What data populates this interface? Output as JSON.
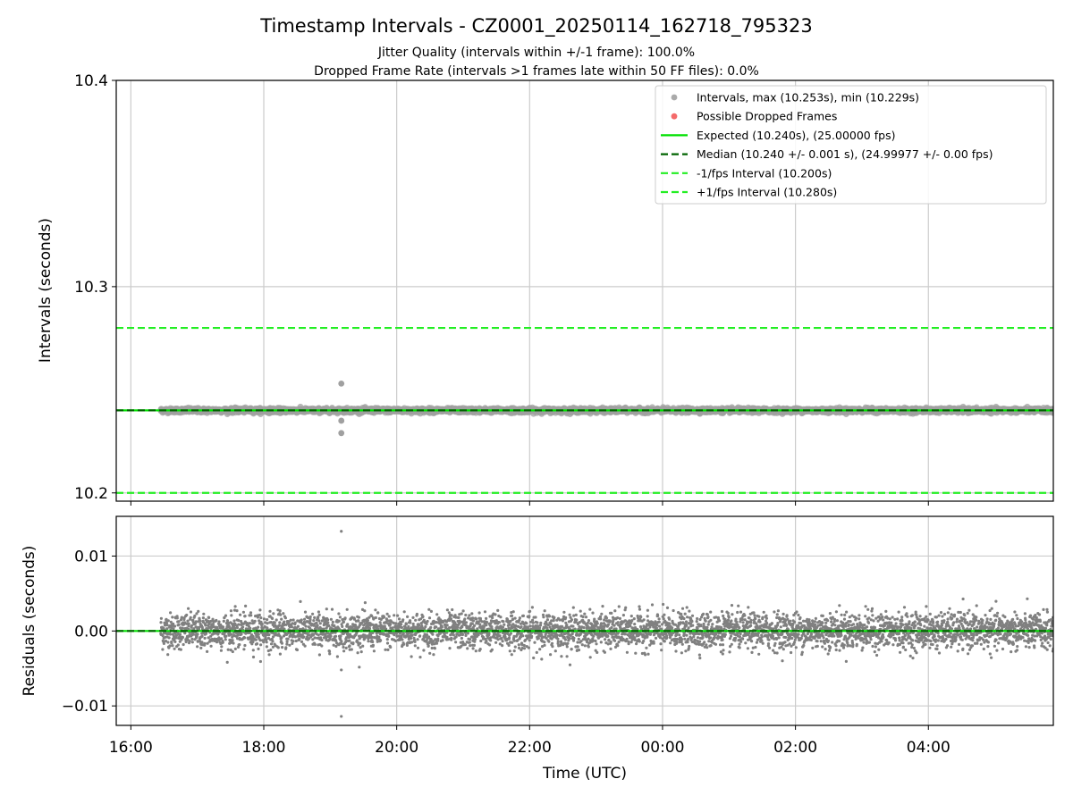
{
  "figure": {
    "title": "Timestamp Intervals - CZ0001_20250114_162718_795323",
    "subtitle_1": "Jitter Quality (intervals within +/-1 frame): 100.0%",
    "subtitle_2": "Dropped Frame Rate (intervals >1 frames late within 50 FF files): 0.0%"
  },
  "chart_data": [
    {
      "panel": "intervals",
      "type": "scatter",
      "ylabel": "Intervals (seconds)",
      "ylim": [
        10.196,
        10.4
      ],
      "xlim_hours": [
        15.78,
        29.88
      ],
      "yticks": [
        10.2,
        10.3,
        10.4
      ],
      "ytick_labels": [
        "10.2",
        "10.3",
        "10.4"
      ],
      "grid": true,
      "legend_position": "top-right",
      "legend": [
        {
          "label": "Intervals, max (10.253s), min (10.229s)",
          "kind": "marker",
          "color": "#aaaaaa"
        },
        {
          "label": "Possible Dropped Frames",
          "kind": "marker",
          "color": "#f46a6a"
        },
        {
          "label": "Expected (10.240s), (25.00000 fps)",
          "kind": "line",
          "color": "#00e000",
          "dash": "solid"
        },
        {
          "label": "Median (10.240 +/- 0.001 s), (24.99977 +/- 0.00 fps)",
          "kind": "line",
          "color": "#006400",
          "dash": "dashed"
        },
        {
          "label": "-1/fps Interval (10.200s)",
          "kind": "line",
          "color": "#22ee22",
          "dash": "dashed"
        },
        {
          "label": "+1/fps Interval (10.280s)",
          "kind": "line",
          "color": "#22ee22",
          "dash": "dashed"
        }
      ],
      "expected": 10.24,
      "median": 10.24,
      "minus_1fps": 10.2,
      "plus_1fps": 10.28,
      "series": {
        "name": "Intervals",
        "x_start": "16:27",
        "x_end": "05:53",
        "central_value": 10.24,
        "spread_sd": 0.0012,
        "count": 4700,
        "outliers": [
          {
            "x": "19:10",
            "y": 10.253
          },
          {
            "x": "19:10",
            "y": 10.235
          },
          {
            "x": "19:10",
            "y": 10.229
          }
        ]
      }
    },
    {
      "panel": "residuals",
      "type": "scatter",
      "ylabel": "Residuals (seconds)",
      "xlabel": "Time (UTC)",
      "ylim": [
        -0.0126,
        0.0153
      ],
      "yticks": [
        -0.01,
        0.0,
        0.01
      ],
      "ytick_labels": [
        "−0.01",
        "0.00",
        "0.01"
      ],
      "xticks": [
        "16:00",
        "18:00",
        "20:00",
        "22:00",
        "00:00",
        "02:00",
        "04:00"
      ],
      "grid": true,
      "series": {
        "name": "Residuals",
        "x_start": "16:27",
        "x_end": "05:53",
        "spread_sd": 0.0012,
        "count": 4700,
        "outliers": [
          {
            "x": "19:10",
            "y": 0.0133
          },
          {
            "x": "19:10",
            "y": -0.0052
          },
          {
            "x": "19:10",
            "y": -0.0114
          }
        ]
      }
    }
  ],
  "colors": {
    "points": "#808080",
    "points_top": "#a0a0a0",
    "expected": "#00e000",
    "median": "#006400",
    "fps_bounds": "#22ee22",
    "grid": "#cccccc"
  }
}
